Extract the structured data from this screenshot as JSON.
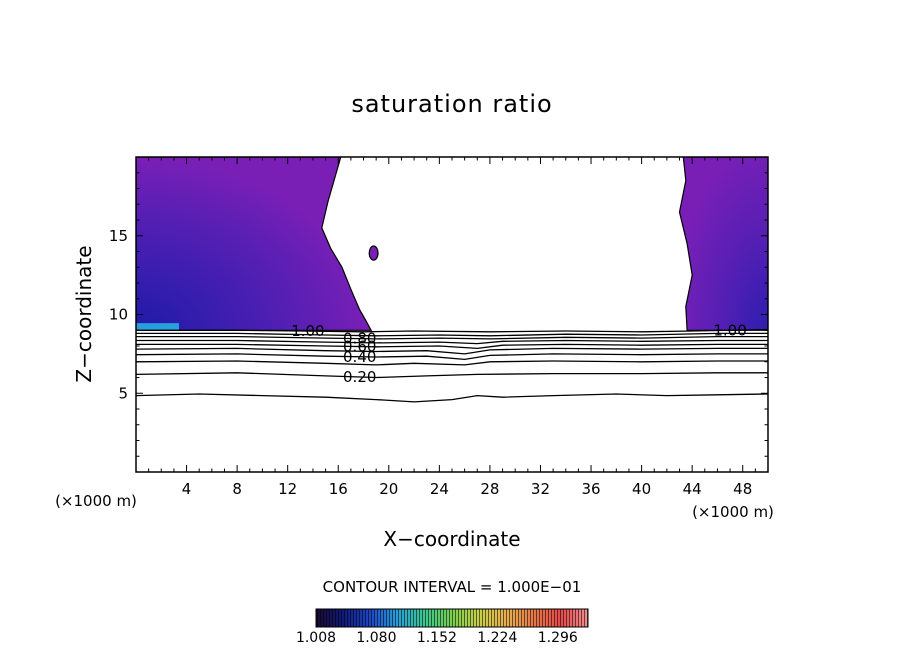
{
  "chart_data": {
    "type": "heatmap",
    "title": "saturation ratio",
    "xlabel": "X−coordinate",
    "ylabel": "Z−coordinate",
    "x_unit_left": "(×1000 m)",
    "x_unit_right": "(×1000 m)",
    "xlim": [
      0,
      50
    ],
    "ylim": [
      0,
      20
    ],
    "x_ticks": [
      4,
      8,
      12,
      16,
      20,
      24,
      28,
      32,
      36,
      40,
      44,
      48
    ],
    "y_ticks": [
      5,
      10,
      15
    ],
    "contour_interval_text": "CONTOUR INTERVAL = 1.000E−01",
    "contour_interval": 0.1,
    "contour_lines": [
      {
        "level": 0.1,
        "label": "",
        "points": [
          [
            0,
            4.85
          ],
          [
            5,
            4.95
          ],
          [
            10,
            4.85
          ],
          [
            15,
            4.75
          ],
          [
            19,
            4.6
          ],
          [
            22,
            4.45
          ],
          [
            25,
            4.6
          ],
          [
            27,
            4.85
          ],
          [
            29,
            4.75
          ],
          [
            33,
            4.85
          ],
          [
            38,
            4.95
          ],
          [
            42,
            4.85
          ],
          [
            46,
            4.9
          ],
          [
            50,
            4.95
          ]
        ]
      },
      {
        "level": 0.2,
        "label": "0.20",
        "points": [
          [
            0,
            6.2
          ],
          [
            8,
            6.3
          ],
          [
            15,
            6.1
          ],
          [
            19,
            6.0
          ],
          [
            23,
            6.1
          ],
          [
            27,
            6.2
          ],
          [
            33,
            6.25
          ],
          [
            40,
            6.25
          ],
          [
            46,
            6.3
          ],
          [
            50,
            6.3
          ]
        ]
      },
      {
        "level": 0.3,
        "label": "",
        "points": [
          [
            0,
            7.0
          ],
          [
            8,
            7.05
          ],
          [
            15,
            6.9
          ],
          [
            19,
            6.8
          ],
          [
            22,
            6.9
          ],
          [
            26,
            6.8
          ],
          [
            28,
            7.0
          ],
          [
            33,
            7.05
          ],
          [
            40,
            7.0
          ],
          [
            46,
            7.05
          ],
          [
            50,
            7.05
          ]
        ]
      },
      {
        "level": 0.4,
        "label": "0.40",
        "points": [
          [
            0,
            7.45
          ],
          [
            8,
            7.5
          ],
          [
            15,
            7.35
          ],
          [
            19,
            7.3
          ],
          [
            23,
            7.35
          ],
          [
            26,
            7.15
          ],
          [
            28,
            7.4
          ],
          [
            33,
            7.5
          ],
          [
            40,
            7.45
          ],
          [
            46,
            7.5
          ],
          [
            50,
            7.5
          ]
        ]
      },
      {
        "level": 0.5,
        "label": "",
        "points": [
          [
            0,
            7.8
          ],
          [
            8,
            7.85
          ],
          [
            15,
            7.7
          ],
          [
            19,
            7.65
          ],
          [
            23,
            7.7
          ],
          [
            26,
            7.5
          ],
          [
            28,
            7.75
          ],
          [
            33,
            7.85
          ],
          [
            40,
            7.8
          ],
          [
            46,
            7.85
          ],
          [
            50,
            7.85
          ]
        ]
      },
      {
        "level": 0.6,
        "label": "0.60",
        "points": [
          [
            0,
            8.1
          ],
          [
            8,
            8.1
          ],
          [
            15,
            8.0
          ],
          [
            19,
            7.95
          ],
          [
            24,
            8.0
          ],
          [
            27,
            7.85
          ],
          [
            29,
            8.05
          ],
          [
            34,
            8.1
          ],
          [
            40,
            8.05
          ],
          [
            46,
            8.1
          ],
          [
            50,
            8.1
          ]
        ]
      },
      {
        "level": 0.7,
        "label": "",
        "points": [
          [
            0,
            8.35
          ],
          [
            8,
            8.35
          ],
          [
            15,
            8.25
          ],
          [
            19,
            8.2
          ],
          [
            24,
            8.25
          ],
          [
            27,
            8.15
          ],
          [
            29,
            8.3
          ],
          [
            34,
            8.35
          ],
          [
            40,
            8.3
          ],
          [
            46,
            8.35
          ],
          [
            50,
            8.35
          ]
        ]
      },
      {
        "level": 0.8,
        "label": "0.80",
        "points": [
          [
            0,
            8.6
          ],
          [
            8,
            8.6
          ],
          [
            15,
            8.5
          ],
          [
            19,
            8.45
          ],
          [
            24,
            8.5
          ],
          [
            28,
            8.45
          ],
          [
            34,
            8.55
          ],
          [
            40,
            8.5
          ],
          [
            46,
            8.6
          ],
          [
            50,
            8.6
          ]
        ]
      },
      {
        "level": 0.9,
        "label": "",
        "points": [
          [
            0,
            8.8
          ],
          [
            8,
            8.8
          ],
          [
            15,
            8.7
          ],
          [
            19,
            8.65
          ],
          [
            24,
            8.7
          ],
          [
            28,
            8.65
          ],
          [
            34,
            8.75
          ],
          [
            40,
            8.7
          ],
          [
            46,
            8.8
          ],
          [
            50,
            8.8
          ]
        ]
      },
      {
        "level": 1.0,
        "label": "1.00",
        "points": [
          [
            0,
            9.0
          ],
          [
            8,
            9.0
          ],
          [
            13,
            8.95
          ],
          [
            18,
            8.9
          ],
          [
            22,
            8.95
          ],
          [
            28,
            8.9
          ],
          [
            34,
            8.95
          ],
          [
            40,
            8.9
          ],
          [
            44,
            8.95
          ],
          [
            50,
            9.05
          ]
        ]
      }
    ],
    "supersaturated_regions": [
      {
        "name": "left",
        "outline": [
          [
            0,
            20
          ],
          [
            16.2,
            20
          ],
          [
            15.2,
            17.2
          ],
          [
            14.7,
            15.5
          ],
          [
            15.4,
            14.2
          ],
          [
            16.3,
            13.0
          ],
          [
            17.0,
            11.6
          ],
          [
            17.7,
            10.3
          ],
          [
            18.2,
            9.6
          ],
          [
            18.6,
            9.0
          ],
          [
            0,
            9.0
          ]
        ]
      },
      {
        "name": "right",
        "outline": [
          [
            43.3,
            20
          ],
          [
            50,
            20
          ],
          [
            50,
            9.0
          ],
          [
            43.6,
            9.0
          ],
          [
            43.5,
            10.5
          ],
          [
            44.0,
            12.5
          ],
          [
            43.6,
            14.5
          ],
          [
            43.0,
            16.5
          ],
          [
            43.5,
            18.5
          ]
        ]
      },
      {
        "name": "cell",
        "center": [
          18.8,
          13.9
        ],
        "radius": [
          0.35,
          0.45
        ]
      }
    ],
    "colorbar": {
      "min": 1.008,
      "max": 1.332,
      "labels": [
        "1.008",
        "1.080",
        "1.152",
        "1.224",
        "1.296"
      ],
      "label_values": [
        1.008,
        1.08,
        1.152,
        1.224,
        1.296
      ],
      "colors": [
        "#1a0a33",
        "#101a78",
        "#1e46c8",
        "#2aa0d8",
        "#3ac890",
        "#78d050",
        "#c8d048",
        "#e8b050",
        "#e87848",
        "#e84848",
        "#f09090"
      ]
    },
    "grid": false,
    "legend": "colorbar-bottom"
  }
}
